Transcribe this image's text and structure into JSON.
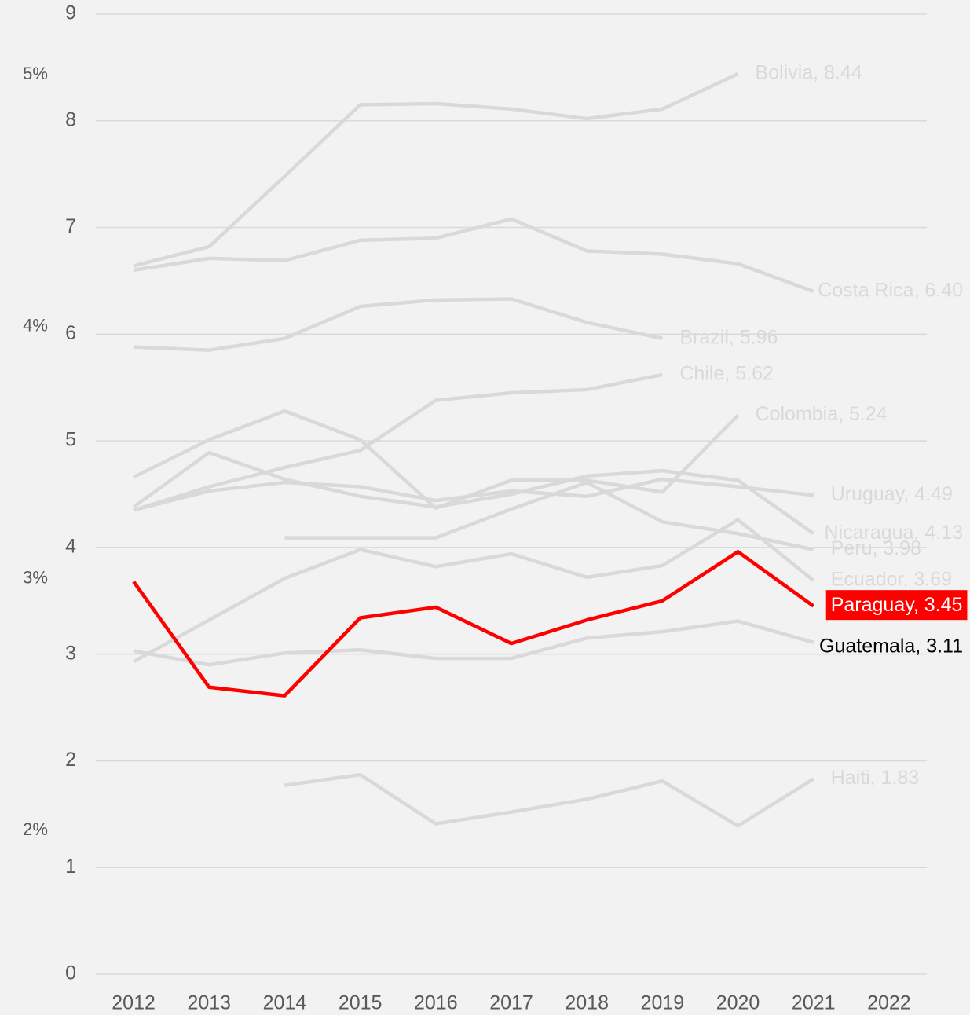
{
  "chart_data": {
    "type": "line",
    "x": [
      2012,
      2013,
      2014,
      2015,
      2016,
      2017,
      2018,
      2019,
      2020,
      2021
    ],
    "xlim": [
      2011.5,
      2022.5
    ],
    "xticks": [
      2012,
      2013,
      2014,
      2015,
      2016,
      2017,
      2018,
      2019,
      2020,
      2021,
      2022
    ],
    "ylim": [
      0,
      9
    ],
    "yticks": [
      0,
      1,
      2,
      3,
      4,
      5,
      6,
      7,
      8,
      9
    ],
    "y2lim": [
      1.43,
      5.24
    ],
    "y2ticks": [
      {
        "value": 2,
        "label": "2%"
      },
      {
        "value": 3,
        "label": "3%"
      },
      {
        "value": 4,
        "label": "4%"
      },
      {
        "value": 5,
        "label": "5%"
      }
    ],
    "grid": true,
    "series": [
      {
        "name": "Bolivia",
        "label": "Bolivia, 8.44",
        "color": "#d9d9d9",
        "label_color": "#d9d9d9",
        "values": [
          6.64,
          6.82,
          7.48,
          8.15,
          8.16,
          8.11,
          8.02,
          8.11,
          8.44,
          null
        ]
      },
      {
        "name": "Costa Rica",
        "label": "Costa Rica, 6.40",
        "color": "#d9d9d9",
        "label_color": "#d9d9d9",
        "values": [
          6.6,
          6.71,
          6.69,
          6.88,
          6.9,
          7.08,
          6.78,
          6.75,
          6.66,
          6.4
        ]
      },
      {
        "name": "Brazil",
        "label": "Brazil, 5.96",
        "color": "#d9d9d9",
        "label_color": "#d9d9d9",
        "values": [
          5.88,
          5.85,
          5.96,
          6.26,
          6.32,
          6.33,
          6.11,
          5.96,
          null,
          null
        ]
      },
      {
        "name": "Chile",
        "label": "Chile, 5.62",
        "color": "#d9d9d9",
        "label_color": "#d9d9d9",
        "values": [
          4.35,
          4.57,
          4.75,
          4.91,
          5.38,
          5.45,
          5.48,
          5.62,
          null,
          null
        ]
      },
      {
        "name": "Colombia",
        "label": "Colombia, 5.24",
        "color": "#d9d9d9",
        "label_color": "#d9d9d9",
        "values": [
          4.66,
          5.01,
          5.28,
          5.01,
          4.37,
          4.63,
          4.63,
          4.52,
          5.24,
          null
        ]
      },
      {
        "name": "Uruguay",
        "label": "Uruguay, 4.49",
        "color": "#d9d9d9",
        "label_color": "#d9d9d9",
        "values": [
          4.35,
          4.53,
          4.61,
          4.57,
          4.44,
          4.53,
          4.48,
          4.64,
          4.57,
          4.49
        ]
      },
      {
        "name": "Nicaragua",
        "label": "Nicaragua, 4.13",
        "color": "#d9d9d9",
        "label_color": "#d9d9d9",
        "values": [
          4.38,
          4.89,
          4.64,
          4.48,
          4.38,
          4.5,
          4.67,
          4.72,
          4.63,
          4.13
        ]
      },
      {
        "name": "Peru",
        "label": "Peru, 3.98",
        "color": "#d9d9d9",
        "label_color": "#d9d9d9",
        "values": [
          null,
          null,
          4.09,
          4.09,
          4.09,
          4.36,
          4.61,
          4.24,
          4.13,
          3.98
        ]
      },
      {
        "name": "Ecuador",
        "label": "Ecuador, 3.69",
        "color": "#d9d9d9",
        "label_color": "#d9d9d9",
        "values": [
          2.93,
          3.32,
          3.71,
          3.98,
          3.82,
          3.94,
          3.72,
          3.83,
          4.26,
          3.69
        ]
      },
      {
        "name": "Guatemala",
        "label": "Guatemala, 3.11",
        "color": "#d9d9d9",
        "label_color": "#000000",
        "values": [
          3.03,
          2.9,
          3.01,
          3.04,
          2.96,
          2.96,
          3.15,
          3.21,
          3.31,
          3.11
        ]
      },
      {
        "name": "Haiti",
        "label": "Haiti, 1.83",
        "color": "#d9d9d9",
        "label_color": "#d9d9d9",
        "values": [
          null,
          null,
          1.77,
          1.87,
          1.41,
          1.52,
          1.64,
          1.81,
          1.39,
          1.83
        ]
      },
      {
        "name": "Paraguay",
        "label": "Paraguay, 3.45",
        "color": "#ff0000",
        "label_color": "#ffffff",
        "label_background": "#ff0000",
        "values": [
          3.68,
          2.69,
          2.61,
          3.34,
          3.44,
          3.1,
          3.32,
          3.5,
          3.96,
          3.45
        ]
      }
    ]
  }
}
